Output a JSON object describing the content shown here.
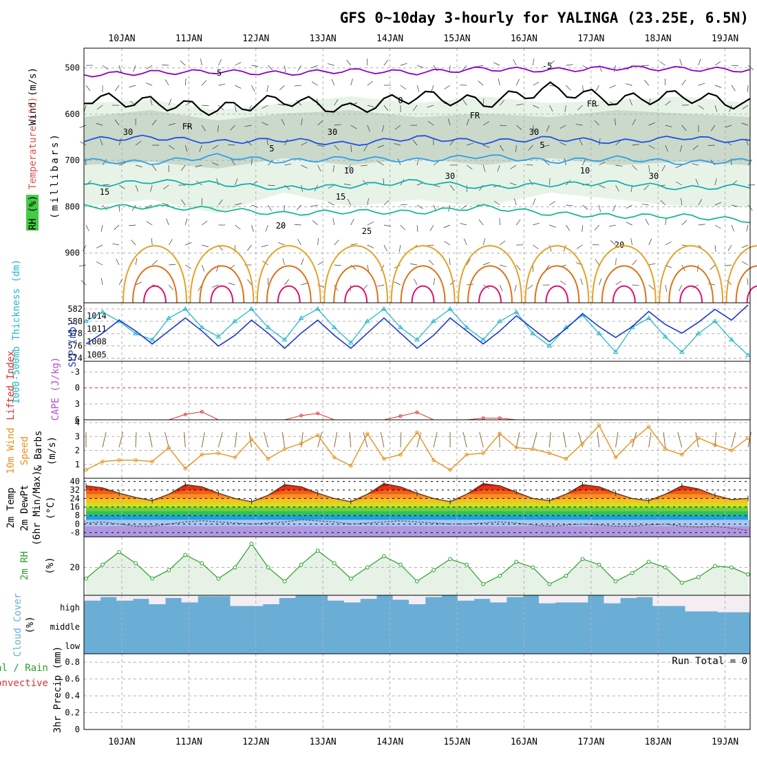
{
  "title": "GFS 0~10day 3-hourly for YALINGA (23.25E, 6.5N)",
  "dates": [
    "10JAN",
    "11JAN",
    "12JAN",
    "13JAN",
    "14JAN",
    "15JAN",
    "16JAN",
    "17JAN",
    "18JAN",
    "19JAN"
  ],
  "colors": {
    "rh_fill": "#e6f2e6",
    "rh_dark": "#b6c8b6",
    "wind_lines": "#9a9a9a",
    "temp_purple": "#8800cc",
    "temp_blue": "#2050e0",
    "temp_lightblue": "#2aa0ee",
    "temp_teal": "#10b0b0",
    "temp_green": "#18b890",
    "temp_orange": "#e8a020",
    "temp_darkorange": "#e07018",
    "temp_magenta": "#e0106c",
    "thickness": "#22b8c8",
    "slp": "#1838d0",
    "wind10": "#e8901c",
    "rh2m": "#28a028",
    "cloud": "#6aaed6",
    "cape_red": "#e03030"
  },
  "panel1": {
    "axis_label_wind": "Wind (m/s)",
    "axis_label_temp": "Temperature (°C)",
    "axis_label_rh": "RH (%)",
    "axis_label_pressure": "(millibars)",
    "pressure_ticks": [
      "500",
      "600",
      "700",
      "800",
      "900"
    ],
    "contour_labels": [
      "-5",
      "-5",
      "0",
      "FR",
      "FR",
      "FR",
      "-5",
      "5",
      "5",
      "10",
      "10",
      "15",
      "15",
      "20",
      "20",
      "25",
      "30",
      "30",
      "30",
      "30",
      "30"
    ]
  },
  "panel2": {
    "label_thickness": "1000-500mb Thickness (dm)",
    "label_slp": "SLP (mb)",
    "left_ticks": [
      "582",
      "580",
      "578",
      "576",
      "574"
    ],
    "right_ticks": [
      "1014",
      "1011",
      "1008",
      "1005"
    ]
  },
  "panel3": {
    "label_li": "Lifted Index",
    "label_cape": "CAPE (J/kg)",
    "ticks": [
      "-3",
      "0",
      "3",
      "6"
    ]
  },
  "panel4": {
    "label_a": "10m Wind",
    "label_b": "Speed",
    "label_c": "& Barbs",
    "label_d": "(m/s)",
    "ticks": [
      "4",
      "3",
      "2",
      "1"
    ]
  },
  "panel5": {
    "label_a": "2m Temp",
    "label_b": "2m DewPt",
    "label_c": "(6hr Min/Max)",
    "label_d": "(°C)",
    "ticks": [
      "40",
      "32",
      "24",
      "16",
      "8",
      "0",
      "-8"
    ]
  },
  "panel6": {
    "label_a": "2m RH",
    "label_b": "(%)",
    "ticks": [
      "20"
    ]
  },
  "panel7": {
    "label_a": "Cloud Cover",
    "label_b": "(%)",
    "ticks": [
      "high",
      "middle",
      "low"
    ]
  },
  "panel8": {
    "label_a": "Total / Rain",
    "label_b": "Convective",
    "label_c": "3hr Precip (mm)",
    "ticks": [
      "0.8",
      "0.6",
      "0.4",
      "0.2",
      "0"
    ],
    "run_total": "Run Total = 0"
  },
  "chart_data": [
    {
      "type": "line",
      "name": "panel1-upper-air",
      "ylabel": "(millibars)",
      "yticks": [
        500,
        600,
        700,
        800,
        900
      ],
      "ylim": [
        1000,
        450
      ],
      "contours": [
        {
          "label": "-5",
          "level_mb": [
            515,
            510,
            508,
            512,
            506,
            510,
            502,
            505,
            500,
            502,
            505
          ]
        },
        {
          "label": "FR",
          "level_mb": [
            565,
            575,
            590,
            568,
            590,
            560,
            575,
            545,
            570,
            560,
            580
          ]
        },
        {
          "label": "5",
          "level_mb": [
            655,
            650,
            660,
            655,
            665,
            650,
            660,
            652,
            660,
            650,
            660
          ]
        },
        {
          "label": "10",
          "level_mb": [
            700,
            705,
            690,
            702,
            695,
            700,
            690,
            702,
            695,
            705,
            700
          ]
        },
        {
          "label": "15",
          "level_mb": [
            755,
            745,
            750,
            760,
            755,
            745,
            758,
            752,
            748,
            760,
            755
          ]
        },
        {
          "label": "20",
          "level_mb": [
            800,
            800,
            805,
            815,
            810,
            812,
            800,
            815,
            820,
            820,
            830
          ]
        }
      ]
    },
    {
      "type": "line",
      "name": "thickness-and-slp",
      "series": [
        {
          "name": "1000-500mb Thickness (dm)",
          "values": [
            580,
            581.5,
            580,
            578,
            577,
            580.5,
            582,
            579,
            577.5,
            580,
            582,
            579,
            577,
            580.5,
            582,
            579,
            576.5,
            580,
            582,
            579,
            577,
            580,
            582,
            579,
            577,
            580,
            581.5,
            578,
            576,
            579,
            581,
            578,
            575,
            579,
            580.5,
            577.5,
            575,
            578,
            580,
            577,
            574.5
          ]
        },
        {
          "name": "SLP (mb)",
          "values": [
            1007.5,
            1010,
            1013,
            1010.5,
            1007.5,
            1010.5,
            1013.5,
            1010.5,
            1007,
            1009.5,
            1013,
            1010,
            1006.5,
            1010,
            1013,
            1009.5,
            1006.5,
            1010,
            1013.5,
            1010,
            1006.5,
            1009.5,
            1013.5,
            1010.5,
            1007.5,
            1010.5,
            1014,
            1011,
            1008,
            1011,
            1014.5,
            1011.5,
            1009,
            1011.5,
            1015,
            1012,
            1010,
            1012.5,
            1015.5,
            1013,
            1016.5
          ]
        }
      ]
    },
    {
      "type": "line",
      "name": "lifted-index",
      "ticks": [
        -3,
        0,
        3,
        6
      ],
      "ylim": [
        -5,
        6
      ],
      "series": [
        {
          "name": "Lifted Index",
          "values": [
            6,
            6,
            6,
            6,
            6,
            6,
            5,
            4.5,
            6,
            6,
            6,
            6,
            6,
            5.2,
            4.8,
            6,
            6,
            6,
            6,
            5.3,
            4.6,
            6,
            6,
            6,
            5.7,
            5.7,
            6,
            6,
            6,
            6,
            6,
            6,
            6,
            6,
            6,
            6,
            6,
            6,
            6,
            6,
            6
          ]
        }
      ]
    },
    {
      "type": "line",
      "name": "10m-wind-speed",
      "ylim": [
        0,
        4
      ],
      "series": [
        {
          "name": "Speed",
          "values": [
            0.6,
            1.2,
            1.3,
            1.3,
            1.2,
            2.2,
            0.7,
            1.7,
            1.8,
            1.5,
            2.8,
            1.4,
            2.1,
            2.5,
            3.1,
            1.5,
            0.9,
            3.2,
            1.4,
            1.7,
            3.3,
            1.3,
            0.6,
            1.7,
            1.8,
            3.2,
            2.2,
            2.1,
            1.8,
            1.4,
            2.5,
            3.8,
            1.5,
            2.7,
            3.7,
            2.1,
            1.7,
            2.9,
            2.4,
            2.0,
            2.9
          ]
        }
      ]
    },
    {
      "type": "area",
      "name": "2m-temp",
      "ylim": [
        -10,
        42
      ],
      "series": [
        {
          "name": "2m Temp",
          "values": [
            36,
            34,
            29,
            25,
            22,
            28,
            37,
            35,
            29,
            24,
            21,
            27,
            37,
            35,
            29,
            24,
            21,
            28,
            38,
            35,
            29,
            24,
            21,
            28,
            38,
            36,
            30,
            24,
            22,
            28,
            37,
            35,
            29,
            24,
            22,
            28,
            36,
            33,
            27,
            23,
            24
          ]
        },
        {
          "name": "2m DewPt",
          "values": [
            1,
            2,
            0,
            -2,
            -2,
            0,
            2,
            3,
            2,
            1,
            0,
            1,
            2,
            4,
            3,
            2,
            0,
            1,
            2,
            3,
            2,
            1,
            0,
            0,
            1,
            2,
            1,
            -1,
            -2,
            -1,
            0,
            -1,
            -2,
            -2,
            -1,
            0,
            -2,
            -3,
            -2,
            -4,
            -6
          ]
        }
      ]
    },
    {
      "type": "area",
      "name": "2m-rh",
      "series": [
        {
          "name": "2m RH",
          "values": [
            12,
            22,
            31,
            23,
            12,
            18,
            29,
            23,
            12,
            20,
            37,
            20,
            10,
            22,
            32,
            23,
            12,
            20,
            28,
            22,
            10,
            18,
            26,
            22,
            8,
            14,
            24,
            20,
            8,
            14,
            26,
            22,
            10,
            16,
            24,
            20,
            9,
            13,
            21,
            20,
            15
          ]
        }
      ]
    },
    {
      "type": "bar",
      "name": "cloud-cover-high",
      "values": [
        70,
        90,
        70,
        80,
        50,
        85,
        60,
        95,
        95,
        40,
        40,
        50,
        85,
        100,
        100,
        70,
        60,
        80,
        100,
        75,
        50,
        90,
        100,
        70,
        80,
        60,
        90,
        100,
        55,
        60,
        60,
        100,
        55,
        85,
        90,
        40,
        40,
        10,
        10,
        5,
        5
      ]
    },
    {
      "type": "bar",
      "name": "3hr-precip",
      "ylim": [
        0,
        0.9
      ],
      "values": [
        0,
        0,
        0,
        0,
        0,
        0,
        0,
        0,
        0,
        0,
        0,
        0,
        0,
        0,
        0,
        0,
        0,
        0,
        0,
        0,
        0,
        0,
        0,
        0,
        0,
        0,
        0,
        0,
        0,
        0,
        0,
        0,
        0,
        0,
        0,
        0,
        0,
        0,
        0,
        0,
        0
      ]
    }
  ]
}
